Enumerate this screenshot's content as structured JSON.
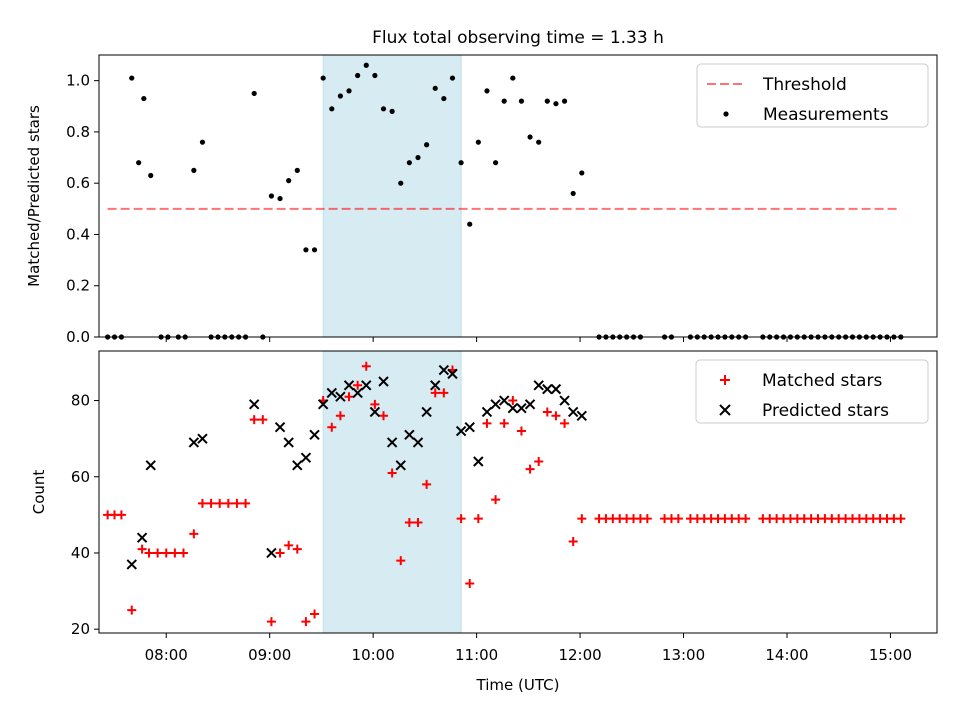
{
  "chart_data": [
    {
      "type": "scatter",
      "title": "Flux total observing time = 1.33 h",
      "xlabel": "",
      "ylabel": "Matched/Predicted stars",
      "ylim": [
        0,
        1.1
      ],
      "xlim": [
        "07:21",
        "15:27"
      ],
      "yticks": [
        "0.0",
        "0.2",
        "0.4",
        "0.6",
        "0.8",
        "1.0"
      ],
      "grid": false,
      "legend_position": "top-right",
      "highlight_span": {
        "start": "09:31",
        "end": "10:51",
        "color": "#add8e6"
      },
      "threshold": {
        "name": "Threshold",
        "value": 0.5,
        "x_start": "07:26",
        "x_end": "15:04",
        "color": "#ff0000",
        "style": "dashed"
      },
      "series": [
        {
          "name": "Measurements",
          "marker": "dot",
          "color": "#000000",
          "points": [
            [
              "07:26",
              0
            ],
            [
              "07:30",
              0
            ],
            [
              "07:34",
              0
            ],
            [
              "07:40",
              1.01
            ],
            [
              "07:44",
              0.68
            ],
            [
              "07:47",
              0.93
            ],
            [
              "07:51",
              0.63
            ],
            [
              "07:57",
              0
            ],
            [
              "08:01",
              0
            ],
            [
              "08:07",
              0
            ],
            [
              "08:11",
              0
            ],
            [
              "08:16",
              0.65
            ],
            [
              "08:21",
              0.76
            ],
            [
              "08:26",
              0
            ],
            [
              "08:30",
              0
            ],
            [
              "08:34",
              0
            ],
            [
              "08:38",
              0
            ],
            [
              "08:42",
              0
            ],
            [
              "08:46",
              0
            ],
            [
              "08:51",
              0.95
            ],
            [
              "08:56",
              0
            ],
            [
              "09:01",
              0.55
            ],
            [
              "09:06",
              0.54
            ],
            [
              "09:11",
              0.61
            ],
            [
              "09:16",
              0.65
            ],
            [
              "09:21",
              0.34
            ],
            [
              "09:26",
              0.34
            ],
            [
              "09:31",
              1.01
            ],
            [
              "09:36",
              0.89
            ],
            [
              "09:41",
              0.94
            ],
            [
              "09:46",
              0.96
            ],
            [
              "09:51",
              1.02
            ],
            [
              "09:56",
              1.06
            ],
            [
              "10:01",
              1.02
            ],
            [
              "10:06",
              0.89
            ],
            [
              "10:11",
              0.88
            ],
            [
              "10:16",
              0.6
            ],
            [
              "10:21",
              0.68
            ],
            [
              "10:26",
              0.7
            ],
            [
              "10:31",
              0.75
            ],
            [
              "10:36",
              0.97
            ],
            [
              "10:41",
              0.93
            ],
            [
              "10:46",
              1.01
            ],
            [
              "10:51",
              0.68
            ],
            [
              "10:56",
              0.44
            ],
            [
              "11:01",
              0.76
            ],
            [
              "11:06",
              0.96
            ],
            [
              "11:11",
              0.68
            ],
            [
              "11:16",
              0.92
            ],
            [
              "11:21",
              1.01
            ],
            [
              "11:26",
              0.92
            ],
            [
              "11:31",
              0.78
            ],
            [
              "11:36",
              0.76
            ],
            [
              "11:41",
              0.92
            ],
            [
              "11:46",
              0.91
            ],
            [
              "11:51",
              0.92
            ],
            [
              "11:56",
              0.56
            ],
            [
              "12:01",
              0.64
            ],
            [
              "12:11",
              0
            ],
            [
              "12:15",
              0
            ],
            [
              "12:19",
              0
            ],
            [
              "12:23",
              0
            ],
            [
              "12:27",
              0
            ],
            [
              "12:31",
              0
            ],
            [
              "12:35",
              0
            ],
            [
              "12:49",
              0
            ],
            [
              "12:53",
              0
            ],
            [
              "13:04",
              0
            ],
            [
              "13:08",
              0
            ],
            [
              "13:12",
              0
            ],
            [
              "13:16",
              0
            ],
            [
              "13:20",
              0
            ],
            [
              "13:24",
              0
            ],
            [
              "13:28",
              0
            ],
            [
              "13:32",
              0
            ],
            [
              "13:36",
              0
            ],
            [
              "13:46",
              0
            ],
            [
              "13:50",
              0
            ],
            [
              "13:54",
              0
            ],
            [
              "13:58",
              0
            ],
            [
              "14:02",
              0
            ],
            [
              "14:06",
              0
            ],
            [
              "14:10",
              0
            ],
            [
              "14:14",
              0
            ],
            [
              "14:18",
              0
            ],
            [
              "14:22",
              0
            ],
            [
              "14:26",
              0
            ],
            [
              "14:30",
              0
            ],
            [
              "14:34",
              0
            ],
            [
              "14:38",
              0
            ],
            [
              "14:42",
              0
            ],
            [
              "14:46",
              0
            ],
            [
              "14:50",
              0
            ],
            [
              "14:54",
              0
            ],
            [
              "14:58",
              0
            ],
            [
              "15:02",
              0
            ],
            [
              "15:06",
              0
            ]
          ]
        }
      ]
    },
    {
      "type": "scatter",
      "title": "",
      "xlabel": "Time (UTC)",
      "ylabel": "Count",
      "ylim": [
        19,
        93
      ],
      "xlim": [
        "07:21",
        "15:27"
      ],
      "xticks": [
        "08:00",
        "09:00",
        "10:00",
        "11:00",
        "12:00",
        "13:00",
        "14:00",
        "15:00"
      ],
      "yticks": [
        "20",
        "40",
        "60",
        "80"
      ],
      "grid": false,
      "legend_position": "top-right",
      "highlight_span": {
        "start": "09:31",
        "end": "10:51",
        "color": "#add8e6"
      },
      "series": [
        {
          "name": "Matched stars",
          "marker": "plus",
          "color": "#ff0000",
          "points": [
            [
              "07:26",
              50
            ],
            [
              "07:30",
              50
            ],
            [
              "07:34",
              50
            ],
            [
              "07:40",
              25
            ],
            [
              "07:46",
              41
            ],
            [
              "07:50",
              40
            ],
            [
              "07:55",
              40
            ],
            [
              "08:00",
              40
            ],
            [
              "08:05",
              40
            ],
            [
              "08:10",
              40
            ],
            [
              "08:16",
              45
            ],
            [
              "08:21",
              53
            ],
            [
              "08:26",
              53
            ],
            [
              "08:31",
              53
            ],
            [
              "08:36",
              53
            ],
            [
              "08:41",
              53
            ],
            [
              "08:46",
              53
            ],
            [
              "08:51",
              75
            ],
            [
              "08:56",
              75
            ],
            [
              "09:01",
              22
            ],
            [
              "09:06",
              40
            ],
            [
              "09:11",
              42
            ],
            [
              "09:16",
              41
            ],
            [
              "09:21",
              22
            ],
            [
              "09:26",
              24
            ],
            [
              "09:31",
              80
            ],
            [
              "09:36",
              73
            ],
            [
              "09:41",
              76
            ],
            [
              "09:46",
              81
            ],
            [
              "09:51",
              84
            ],
            [
              "09:56",
              89
            ],
            [
              "10:01",
              79
            ],
            [
              "10:06",
              76
            ],
            [
              "10:11",
              61
            ],
            [
              "10:16",
              38
            ],
            [
              "10:21",
              48
            ],
            [
              "10:26",
              48
            ],
            [
              "10:31",
              58
            ],
            [
              "10:36",
              82
            ],
            [
              "10:41",
              82
            ],
            [
              "10:46",
              88
            ],
            [
              "10:51",
              49
            ],
            [
              "10:56",
              32
            ],
            [
              "11:01",
              49
            ],
            [
              "11:06",
              74
            ],
            [
              "11:11",
              54
            ],
            [
              "11:16",
              74
            ],
            [
              "11:21",
              80
            ],
            [
              "11:26",
              72
            ],
            [
              "11:31",
              62
            ],
            [
              "11:36",
              64
            ],
            [
              "11:41",
              77
            ],
            [
              "11:46",
              76
            ],
            [
              "11:51",
              74
            ],
            [
              "11:56",
              43
            ],
            [
              "12:01",
              49
            ],
            [
              "12:11",
              49
            ],
            [
              "12:15",
              49
            ],
            [
              "12:19",
              49
            ],
            [
              "12:23",
              49
            ],
            [
              "12:27",
              49
            ],
            [
              "12:31",
              49
            ],
            [
              "12:35",
              49
            ],
            [
              "12:39",
              49
            ],
            [
              "12:49",
              49
            ],
            [
              "12:53",
              49
            ],
            [
              "12:57",
              49
            ],
            [
              "13:04",
              49
            ],
            [
              "13:08",
              49
            ],
            [
              "13:12",
              49
            ],
            [
              "13:16",
              49
            ],
            [
              "13:20",
              49
            ],
            [
              "13:24",
              49
            ],
            [
              "13:28",
              49
            ],
            [
              "13:32",
              49
            ],
            [
              "13:36",
              49
            ],
            [
              "13:46",
              49
            ],
            [
              "13:50",
              49
            ],
            [
              "13:54",
              49
            ],
            [
              "13:58",
              49
            ],
            [
              "14:02",
              49
            ],
            [
              "14:06",
              49
            ],
            [
              "14:10",
              49
            ],
            [
              "14:14",
              49
            ],
            [
              "14:18",
              49
            ],
            [
              "14:22",
              49
            ],
            [
              "14:26",
              49
            ],
            [
              "14:30",
              49
            ],
            [
              "14:34",
              49
            ],
            [
              "14:38",
              49
            ],
            [
              "14:42",
              49
            ],
            [
              "14:46",
              49
            ],
            [
              "14:50",
              49
            ],
            [
              "14:54",
              49
            ],
            [
              "14:58",
              49
            ],
            [
              "15:02",
              49
            ],
            [
              "15:06",
              49
            ]
          ]
        },
        {
          "name": "Predicted stars",
          "marker": "x",
          "color": "#000000",
          "points": [
            [
              "07:40",
              37
            ],
            [
              "07:46",
              44
            ],
            [
              "07:51",
              63
            ],
            [
              "08:16",
              69
            ],
            [
              "08:21",
              70
            ],
            [
              "08:51",
              79
            ],
            [
              "09:01",
              40
            ],
            [
              "09:06",
              73
            ],
            [
              "09:11",
              69
            ],
            [
              "09:16",
              63
            ],
            [
              "09:21",
              65
            ],
            [
              "09:26",
              71
            ],
            [
              "09:31",
              79
            ],
            [
              "09:36",
              82
            ],
            [
              "09:41",
              81
            ],
            [
              "09:46",
              84
            ],
            [
              "09:51",
              82
            ],
            [
              "09:56",
              84
            ],
            [
              "10:01",
              77
            ],
            [
              "10:06",
              85
            ],
            [
              "10:11",
              69
            ],
            [
              "10:16",
              63
            ],
            [
              "10:21",
              71
            ],
            [
              "10:26",
              69
            ],
            [
              "10:31",
              77
            ],
            [
              "10:36",
              84
            ],
            [
              "10:41",
              88
            ],
            [
              "10:46",
              87
            ],
            [
              "10:51",
              72
            ],
            [
              "10:56",
              73
            ],
            [
              "11:01",
              64
            ],
            [
              "11:06",
              77
            ],
            [
              "11:11",
              79
            ],
            [
              "11:16",
              80
            ],
            [
              "11:21",
              78
            ],
            [
              "11:26",
              78
            ],
            [
              "11:31",
              79
            ],
            [
              "11:36",
              84
            ],
            [
              "11:41",
              83
            ],
            [
              "11:46",
              83
            ],
            [
              "11:51",
              80
            ],
            [
              "11:56",
              77
            ],
            [
              "12:01",
              76
            ]
          ]
        }
      ]
    }
  ]
}
